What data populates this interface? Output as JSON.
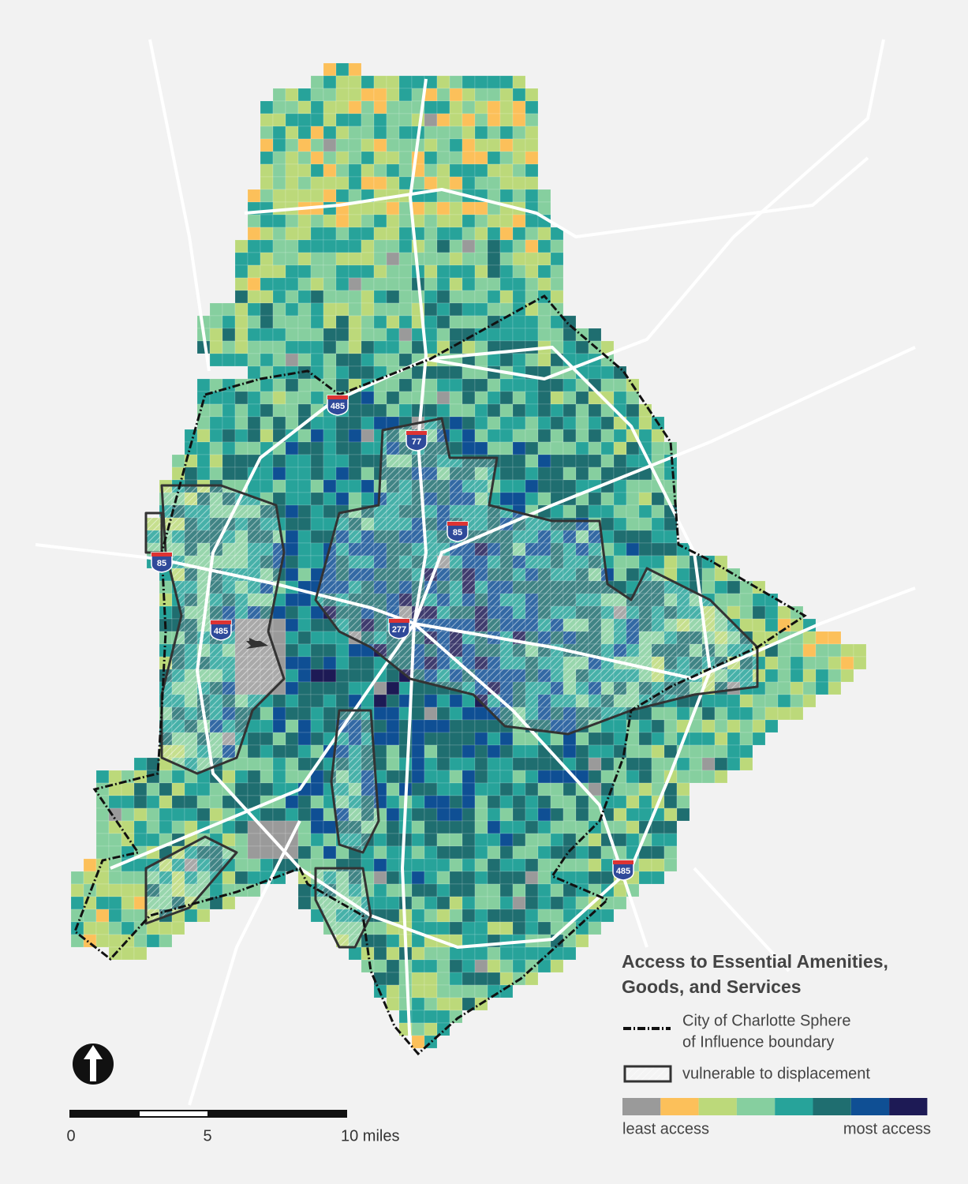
{
  "legend": {
    "title": [
      "Access to Essential Amenities,",
      "Goods, and Services"
    ],
    "boundary": [
      "City of Charlotte Sphere",
      "of Influence boundary"
    ],
    "vulnerable": "vulnerable to displacement",
    "colors": [
      "#9a9a9a",
      "#fcc05a",
      "#bcd97a",
      "#86cf9f",
      "#27a39a",
      "#1f6e70",
      "#0f4f94",
      "#1d1a55"
    ],
    "least": "least access",
    "most": "most access"
  },
  "highways": [
    {
      "label": "485"
    },
    {
      "label": "77"
    },
    {
      "label": "85"
    },
    {
      "label": "85"
    },
    {
      "label": "485"
    },
    {
      "label": "277"
    },
    {
      "label": "485"
    }
  ],
  "scale_bar": {
    "labels": [
      "0",
      "5",
      "10 miles"
    ]
  }
}
